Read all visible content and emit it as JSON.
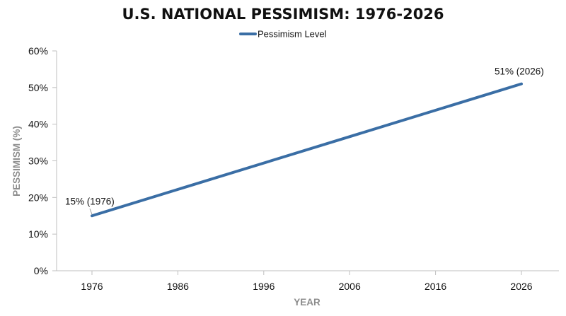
{
  "chart_data": {
    "type": "line",
    "title": "U.S. NATIONAL PESSIMISM: 1976-2026",
    "xlabel": "YEAR",
    "ylabel": "PESSIMISM (%)",
    "x": [
      1976,
      2026
    ],
    "x_ticks": [
      "1976",
      "1986",
      "1996",
      "2006",
      "2016",
      "2026"
    ],
    "y_ticks": [
      "0%",
      "10%",
      "20%",
      "30%",
      "40%",
      "50%",
      "60%"
    ],
    "xlim": [
      1976,
      2026
    ],
    "ylim": [
      0,
      60
    ],
    "grid": false,
    "legend_position": "top-center",
    "series": [
      {
        "name": "Pessimism Level",
        "x": [
          1976,
          2026
        ],
        "values": [
          15,
          51
        ],
        "color": "#3a6ea5"
      }
    ],
    "annotations": [
      {
        "text": "15% (1976)",
        "x": 1976,
        "y": 15
      },
      {
        "text": "51% (2026)",
        "x": 2026,
        "y": 51
      }
    ]
  }
}
